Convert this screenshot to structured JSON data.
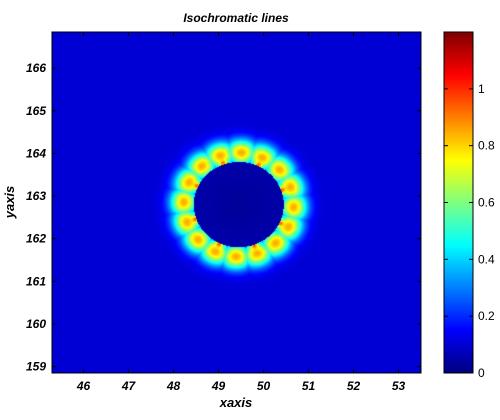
{
  "chart_data": {
    "type": "heatmap",
    "title": "Isochromatic lines",
    "xlabel": "xaxis",
    "ylabel": "yaxis",
    "xlim": [
      45.3,
      53.5
    ],
    "ylim": [
      158.85,
      166.85
    ],
    "x_ticks": [
      46,
      47,
      48,
      49,
      50,
      51,
      52,
      53
    ],
    "y_ticks": [
      159,
      160,
      161,
      162,
      163,
      164,
      165,
      166
    ],
    "colorbar": {
      "colormap": "jet",
      "range": [
        0,
        1.2
      ],
      "ticks": [
        0,
        0.2,
        0.4,
        0.6,
        0.8,
        1
      ]
    },
    "field": {
      "center": [
        49.45,
        162.8
      ],
      "hole_radius": 1.0,
      "num_lobes": 8,
      "lobe_peak_value": 1.2,
      "inner_value": 0.05,
      "background_value": 0.1
    }
  }
}
